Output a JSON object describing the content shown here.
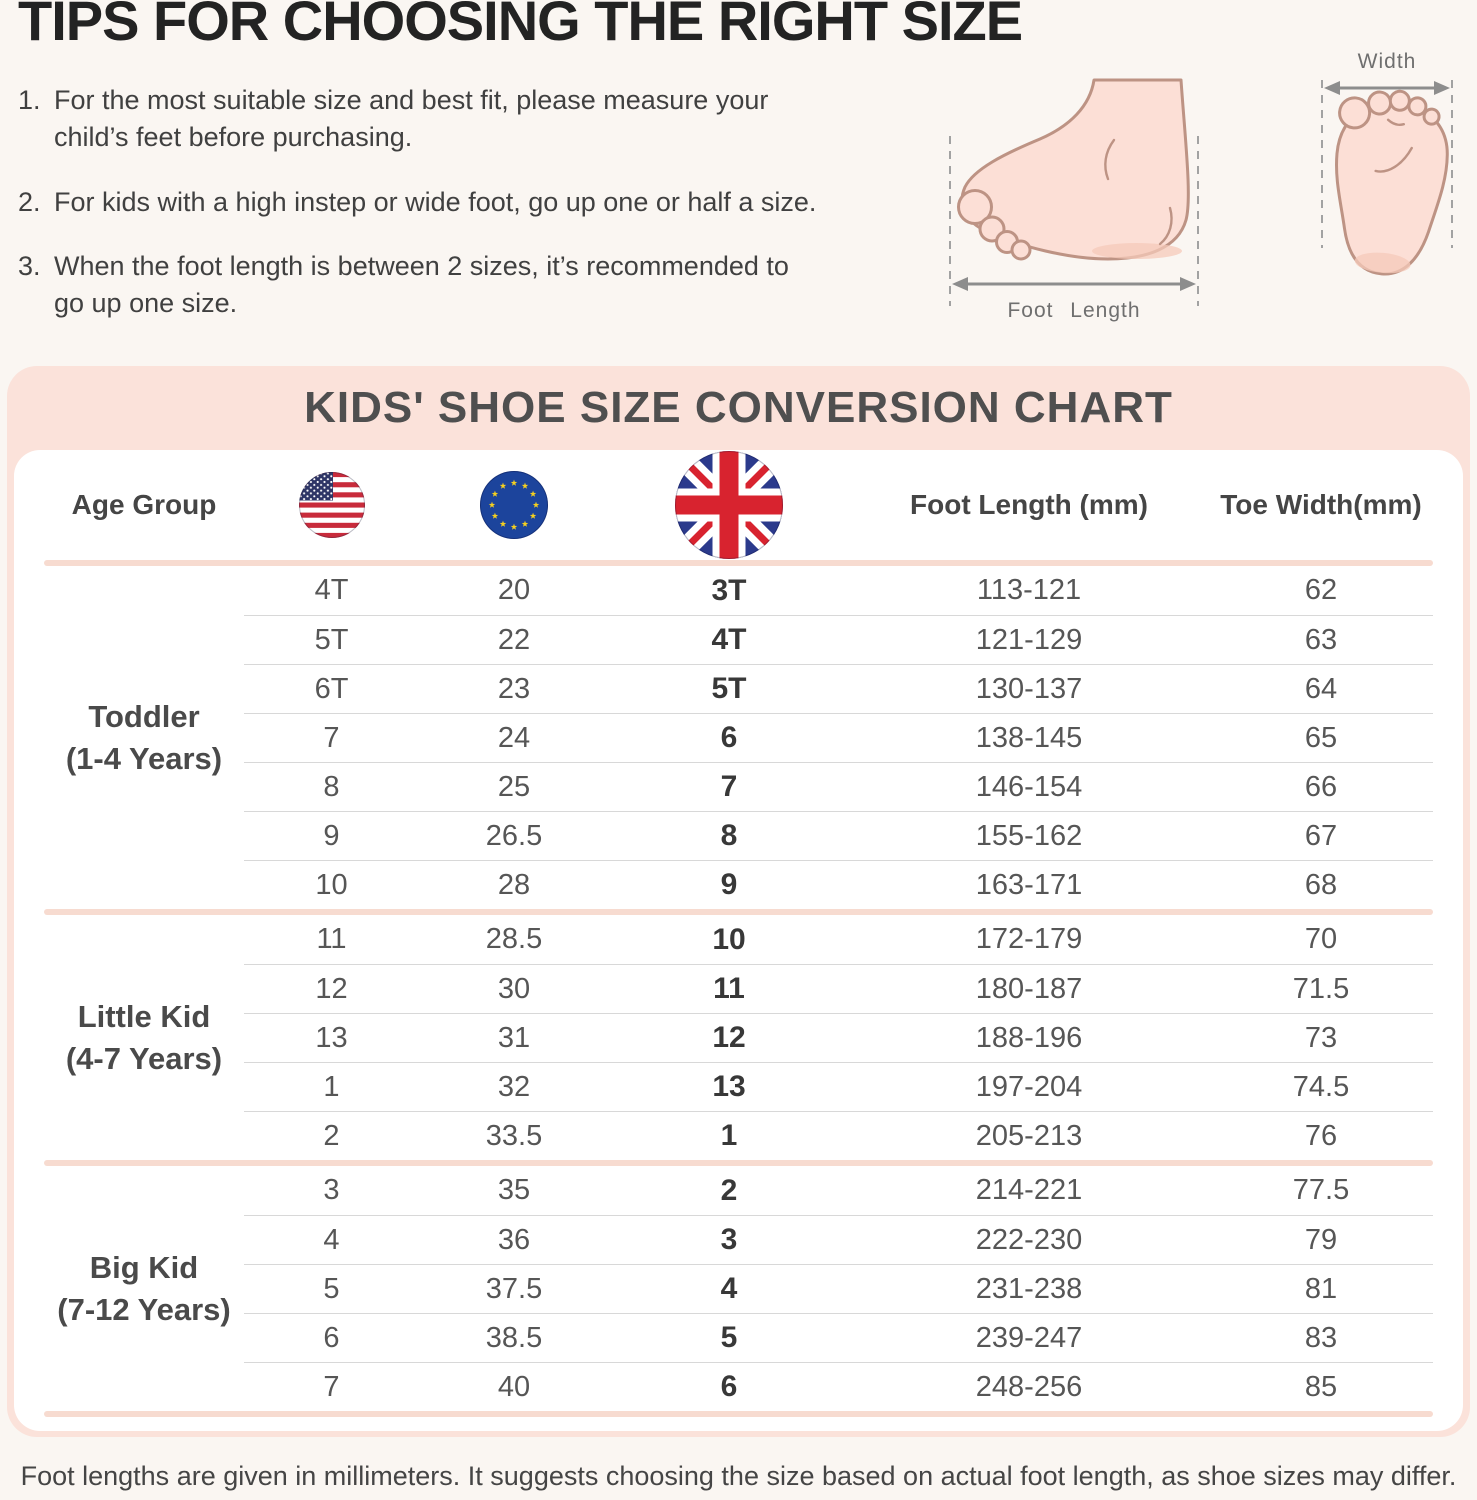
{
  "header": {
    "title": "TIPS FOR CHOOSING THE RIGHT SIZE",
    "tips": [
      {
        "num": "1.",
        "text": "For the most suitable size and best fit, please measure your child’s feet before purchasing."
      },
      {
        "num": "2.",
        "text": "For kids with a high instep or wide foot, go up one or half a size."
      },
      {
        "num": "3.",
        "text": "When the foot length is between 2 sizes, it’s recommended to go up one size."
      }
    ],
    "diagram": {
      "foot_length_label": "Foot Length",
      "width_label": "Width"
    }
  },
  "chart": {
    "title": "KIDS' SHOE SIZE CONVERSION CHART",
    "columns": {
      "age": "Age Group",
      "us_icon": "us-flag-icon",
      "eu_icon": "eu-flag-icon",
      "uk_icon": "uk-flag-icon",
      "foot": "Foot Length (mm)",
      "toe": "Toe Width(mm)"
    },
    "groups": [
      {
        "label": "Toddler",
        "years": "(1-4 Years)",
        "rows": [
          [
            "4T",
            "20",
            "3T",
            "113-121",
            "62"
          ],
          [
            "5T",
            "22",
            "4T",
            "121-129",
            "63"
          ],
          [
            "6T",
            "23",
            "5T",
            "130-137",
            "64"
          ],
          [
            "7",
            "24",
            "6",
            "138-145",
            "65"
          ],
          [
            "8",
            "25",
            "7",
            "146-154",
            "66"
          ],
          [
            "9",
            "26.5",
            "8",
            "155-162",
            "67"
          ],
          [
            "10",
            "28",
            "9",
            "163-171",
            "68"
          ]
        ]
      },
      {
        "label": "Little Kid",
        "years": "(4-7 Years)",
        "rows": [
          [
            "11",
            "28.5",
            "10",
            "172-179",
            "70"
          ],
          [
            "12",
            "30",
            "11",
            "180-187",
            "71.5"
          ],
          [
            "13",
            "31",
            "12",
            "188-196",
            "73"
          ],
          [
            "1",
            "32",
            "13",
            "197-204",
            "74.5"
          ],
          [
            "2",
            "33.5",
            "1",
            "205-213",
            "76"
          ]
        ]
      },
      {
        "label": "Big Kid",
        "years": "(7-12 Years)",
        "rows": [
          [
            "3",
            "35",
            "2",
            "214-221",
            "77.5"
          ],
          [
            "4",
            "36",
            "3",
            "222-230",
            "79"
          ],
          [
            "5",
            "37.5",
            "4",
            "231-238",
            "81"
          ],
          [
            "6",
            "38.5",
            "5",
            "239-247",
            "83"
          ],
          [
            "7",
            "40",
            "6",
            "248-256",
            "85"
          ]
        ]
      }
    ]
  },
  "footnote": "Foot lengths are given in millimeters. It suggests choosing the size based on actual foot length, as shoe sizes may differ.",
  "colors": {
    "page_bg": "#faf6f2",
    "pink_container": "#fbe2da",
    "pink_divider": "#f7dbd0",
    "panel": "#ffffff",
    "title_text": "#232323",
    "chart_title_text": "#4f4f4f",
    "cell_text": "#565656",
    "uk_cell_text": "#383838",
    "skin": "#fcdfd6",
    "skin_outline": "#bd9384",
    "us_red": "#c82b3b",
    "us_blue": "#2e3566",
    "eu_blue": "#1c449c",
    "eu_star": "#f5d020",
    "uk_blue": "#2b3a8c",
    "uk_red": "#d8232f"
  }
}
